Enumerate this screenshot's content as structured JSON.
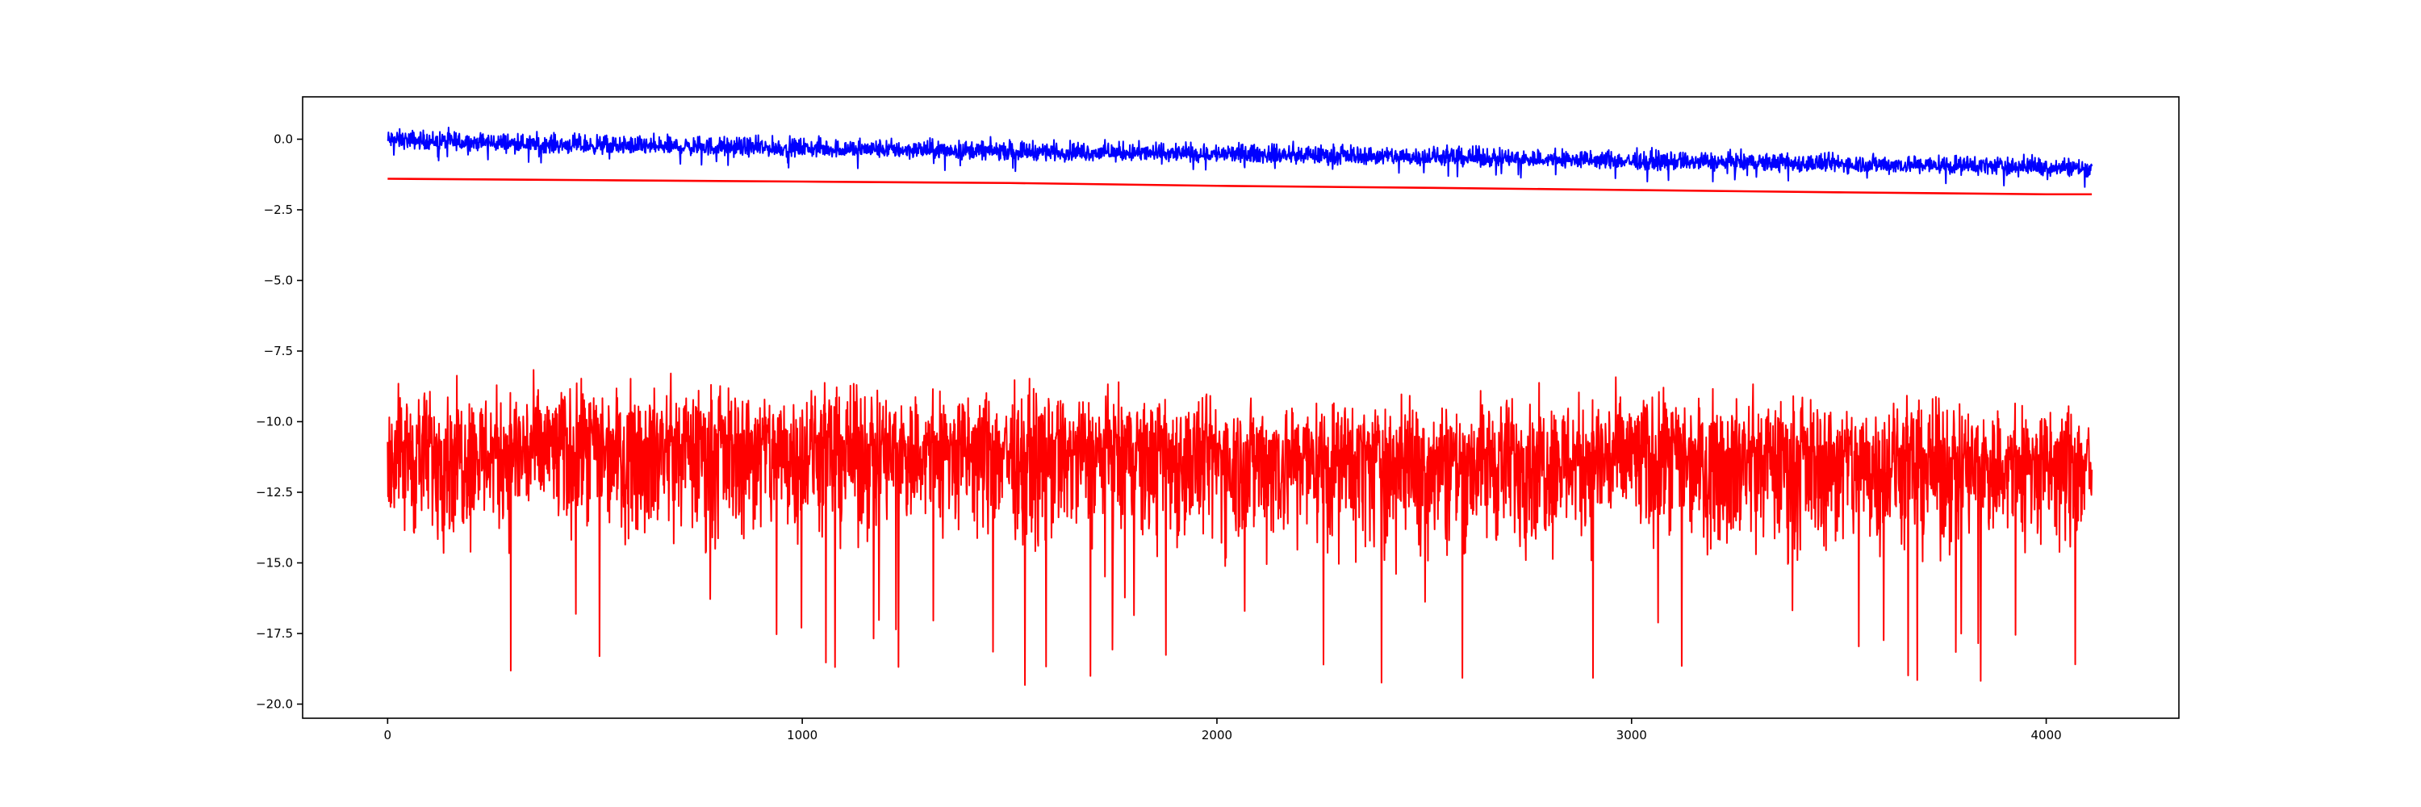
{
  "chart_data": {
    "type": "line",
    "title": "",
    "xlabel": "",
    "ylabel": "",
    "xlim": [
      -205,
      4320
    ],
    "ylim": [
      -20.5,
      1.5
    ],
    "grid": false,
    "legend": "none",
    "x_ticks": [
      0,
      1000,
      2000,
      3000,
      4000
    ],
    "y_ticks": [
      0.0,
      -2.5,
      -5.0,
      -7.5,
      -10.0,
      -12.5,
      -15.0,
      -17.5,
      -20.0
    ],
    "x_tick_labels": [
      "0",
      "1000",
      "2000",
      "3000",
      "4000"
    ],
    "y_tick_labels": [
      "0.0",
      "−2.5",
      "−5.0",
      "−7.5",
      "−10.0",
      "−12.5",
      "−15.0",
      "−17.5",
      "−20.0"
    ],
    "series": [
      {
        "color": "#0000ff",
        "style": "noisy",
        "x": [
          0,
          500,
          1000,
          1500,
          2000,
          2500,
          3000,
          3500,
          4000,
          4110
        ],
        "values": [
          -0.05,
          -0.25,
          -0.35,
          -0.45,
          -0.55,
          -0.65,
          -0.8,
          -0.9,
          -1.0,
          -1.05
        ],
        "noise_range": [
          -0.7,
          0.6
        ],
        "samples": 4110
      },
      {
        "color": "#ff0000",
        "style": "smooth",
        "x": [
          0,
          500,
          1000,
          1500,
          2000,
          2500,
          3000,
          3500,
          4000,
          4110
        ],
        "values": [
          -1.4,
          -1.45,
          -1.5,
          -1.55,
          -1.65,
          -1.72,
          -1.8,
          -1.88,
          -1.95,
          -1.95
        ]
      },
      {
        "color": "#ff0000",
        "style": "noisy",
        "x": [
          0,
          500,
          1000,
          1500,
          2000,
          2500,
          3000,
          3500,
          4000,
          4110
        ],
        "values": [
          -11.0,
          -10.8,
          -10.9,
          -11.0,
          -11.2,
          -11.3,
          -11.1,
          -11.3,
          -11.5,
          -11.4
        ],
        "noise_range": [
          -8.4,
          3.0
        ],
        "samples": 4110
      }
    ]
  }
}
